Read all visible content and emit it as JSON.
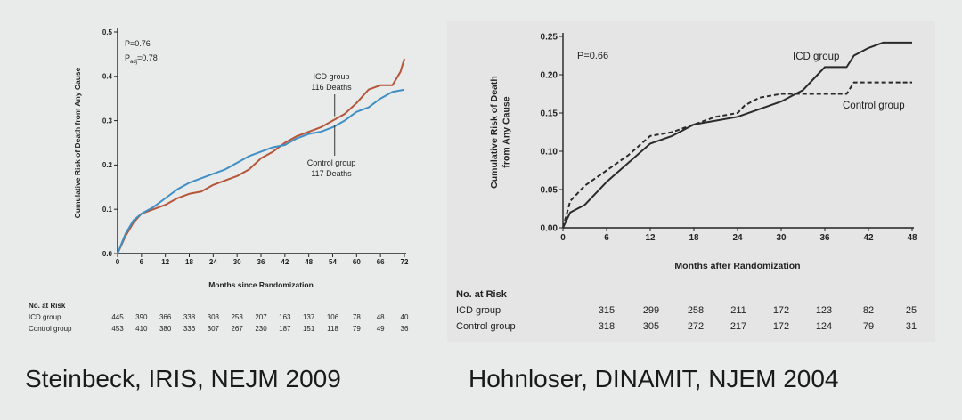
{
  "captions": {
    "left": "Steinbeck, IRIS, NEJM 2009",
    "right": "Hohnloser, DINAMIT, NJEM 2004"
  },
  "chart_data": [
    {
      "type": "line",
      "ylabel": "Cumulative Risk of Death from Any Cause",
      "xlabel": "Months since Randomization",
      "xlim": [
        0,
        72
      ],
      "ylim": [
        0,
        0.5
      ],
      "x_ticks": [
        "0",
        "6",
        "12",
        "18",
        "24",
        "30",
        "36",
        "42",
        "48",
        "54",
        "60",
        "66",
        "72"
      ],
      "y_ticks": [
        "0.0",
        "0.1",
        "0.2",
        "0.3",
        "0.4",
        "0.5"
      ],
      "annotations": [
        "P=0.76",
        "P",
        "adj",
        "=0.78"
      ],
      "series": [
        {
          "name": "ICD group",
          "detail": "116 Deaths",
          "color": "#b5553a",
          "x": [
            0,
            2,
            4,
            6,
            9,
            12,
            15,
            18,
            21,
            24,
            27,
            30,
            33,
            36,
            39,
            42,
            45,
            48,
            51,
            54,
            57,
            60,
            63,
            66,
            69,
            71,
            72
          ],
          "y": [
            0,
            0.04,
            0.07,
            0.09,
            0.1,
            0.11,
            0.125,
            0.135,
            0.14,
            0.155,
            0.165,
            0.175,
            0.19,
            0.215,
            0.23,
            0.25,
            0.265,
            0.275,
            0.285,
            0.3,
            0.315,
            0.34,
            0.37,
            0.38,
            0.38,
            0.41,
            0.44
          ]
        },
        {
          "name": "Control group",
          "detail": "117 Deaths",
          "color": "#3f8fc4",
          "x": [
            0,
            2,
            4,
            6,
            9,
            12,
            15,
            18,
            21,
            24,
            27,
            30,
            33,
            36,
            39,
            42,
            45,
            48,
            51,
            54,
            57,
            60,
            63,
            66,
            69,
            72
          ],
          "y": [
            0,
            0.045,
            0.075,
            0.09,
            0.105,
            0.125,
            0.145,
            0.16,
            0.17,
            0.18,
            0.19,
            0.205,
            0.22,
            0.23,
            0.24,
            0.245,
            0.26,
            0.27,
            0.275,
            0.285,
            0.3,
            0.32,
            0.33,
            0.35,
            0.365,
            0.37
          ]
        }
      ],
      "risk_table": {
        "header": "No. at Risk",
        "rows": [
          {
            "label": "ICD group",
            "values": [
              "445",
              "390",
              "366",
              "338",
              "303",
              "253",
              "207",
              "163",
              "137",
              "106",
              "78",
              "48",
              "40"
            ]
          },
          {
            "label": "Control group",
            "values": [
              "453",
              "410",
              "380",
              "336",
              "307",
              "267",
              "230",
              "187",
              "151",
              "118",
              "79",
              "49",
              "36"
            ]
          }
        ]
      }
    },
    {
      "type": "line",
      "ylabel": "Cumulative Risk of Death from Any Cause",
      "xlabel": "Months after Randomization",
      "xlim": [
        0,
        48
      ],
      "ylim": [
        0,
        0.25
      ],
      "x_ticks": [
        "0",
        "6",
        "12",
        "18",
        "24",
        "30",
        "36",
        "42",
        "48"
      ],
      "y_ticks": [
        "0.00",
        "0.05",
        "0.10",
        "0.15",
        "0.20",
        "0.25"
      ],
      "annotations": [
        "P=0.66"
      ],
      "series": [
        {
          "name": "ICD group",
          "color": "#2a2a2a",
          "style": "solid",
          "x": [
            0,
            1,
            3,
            6,
            9,
            12,
            15,
            18,
            21,
            24,
            27,
            30,
            33,
            35,
            36,
            39,
            40,
            42,
            44,
            48
          ],
          "y": [
            0,
            0.02,
            0.03,
            0.06,
            0.085,
            0.11,
            0.12,
            0.135,
            0.14,
            0.145,
            0.155,
            0.165,
            0.18,
            0.2,
            0.21,
            0.21,
            0.225,
            0.235,
            0.242,
            0.242
          ]
        },
        {
          "name": "Control group",
          "color": "#2a2a2a",
          "style": "dashed",
          "x": [
            0,
            1,
            3,
            6,
            9,
            12,
            15,
            18,
            21,
            24,
            25,
            27,
            30,
            33,
            36,
            39,
            40,
            44,
            48
          ],
          "y": [
            0,
            0.035,
            0.055,
            0.075,
            0.095,
            0.12,
            0.125,
            0.135,
            0.145,
            0.15,
            0.16,
            0.17,
            0.175,
            0.175,
            0.175,
            0.175,
            0.19,
            0.19,
            0.19
          ]
        }
      ],
      "risk_table": {
        "header": "No. at Risk",
        "rows": [
          {
            "label": "ICD group",
            "values": [
              "315",
              "299",
              "258",
              "211",
              "172",
              "123",
              "82",
              "25"
            ]
          },
          {
            "label": "Control group",
            "values": [
              "318",
              "305",
              "272",
              "217",
              "172",
              "124",
              "79",
              "31"
            ]
          }
        ]
      }
    }
  ]
}
